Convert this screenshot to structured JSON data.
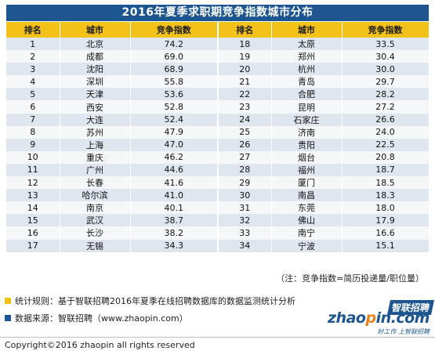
{
  "title": "2016年夏季求职期竞争指数城市分布",
  "headers": [
    "排名",
    "城市",
    "竞争指数",
    "排名",
    "城市",
    "竞争指数"
  ],
  "rows": [
    [
      "1",
      "北京",
      "74.2",
      "18",
      "太原",
      "33.5"
    ],
    [
      "2",
      "成都",
      "69.0",
      "19",
      "郑州",
      "30.4"
    ],
    [
      "3",
      "沈阳",
      "68.9",
      "20",
      "杭州",
      "30.0"
    ],
    [
      "4",
      "深圳",
      "55.8",
      "21",
      "青岛",
      "29.7"
    ],
    [
      "5",
      "天津",
      "53.6",
      "22",
      "合肥",
      "28.2"
    ],
    [
      "6",
      "西安",
      "52.8",
      "23",
      "昆明",
      "27.2"
    ],
    [
      "7",
      "大连",
      "52.4",
      "24",
      "石家庄",
      "26.6"
    ],
    [
      "8",
      "苏州",
      "47.9",
      "25",
      "济南",
      "24.0"
    ],
    [
      "9",
      "上海",
      "47.0",
      "26",
      "贵阳",
      "22.5"
    ],
    [
      "10",
      "重庆",
      "46.2",
      "27",
      "烟台",
      "20.8"
    ],
    [
      "11",
      "广州",
      "44.6",
      "28",
      "福州",
      "18.7"
    ],
    [
      "12",
      "长春",
      "41.6",
      "29",
      "厦门",
      "18.5"
    ],
    [
      "13",
      "哈尔滨",
      "41.0",
      "30",
      "南昌",
      "18.3"
    ],
    [
      "14",
      "南京",
      "40.1",
      "31",
      "东莞",
      "18.0"
    ],
    [
      "15",
      "武汉",
      "38.7",
      "32",
      "佛山",
      "17.9"
    ],
    [
      "16",
      "长沙",
      "38.2",
      "33",
      "南宁",
      "16.6"
    ],
    [
      "17",
      "无锡",
      "34.3",
      "34",
      "宁波",
      "15.1"
    ]
  ],
  "formula": "（注：竞争指数=简历投递量/职位量）",
  "notes": {
    "stats_rule": "统计规则：基于智联招聘2016年夏季在线招聘数据库的数据监测统计分析",
    "source": "数据来源：智联招聘（www.zhaopin.com）"
  },
  "logo": {
    "cn": "智联招聘",
    "en_a": "zhao",
    "en_dot": "p",
    "en_b": "in.com",
    "tagline": "好工作 上智联招聘"
  },
  "copyright": "Copyright©2016 zhaopin all rights reserved",
  "colors": {
    "title_bg": "#1d5591",
    "header_bg": "#f3c219",
    "row_odd": "#dfe6ef",
    "row_even": "#f6f7f9",
    "note_yellow": "#f3c219",
    "note_blue": "#1d5591"
  }
}
